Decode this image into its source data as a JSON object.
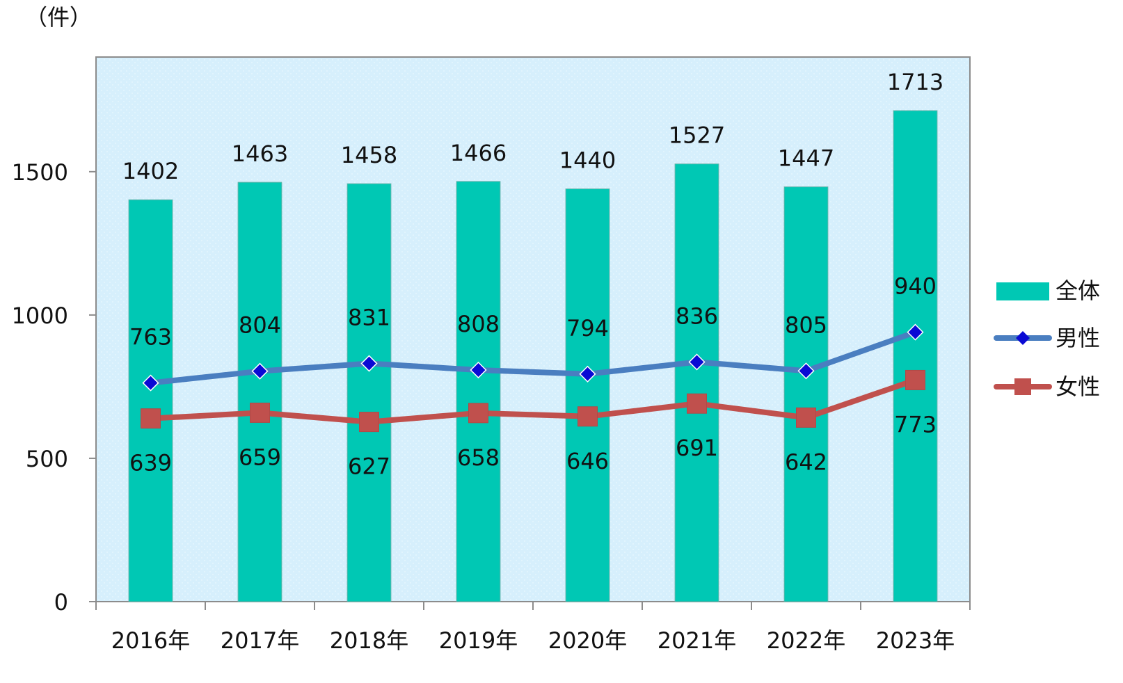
{
  "chart_data": {
    "type": "bar",
    "unit_label": "（件）",
    "categories": [
      "2016年",
      "2017年",
      "2018年",
      "2019年",
      "2020年",
      "2021年",
      "2022年",
      "2023年"
    ],
    "ylim": [
      0,
      1900
    ],
    "yticks": [
      "0",
      "500",
      "1000",
      "1500"
    ],
    "grid": false,
    "legend_position": "right",
    "colors": {
      "total": "#00c8b4",
      "male": "#4a7ec0",
      "male_marker": "#0a0ad4",
      "female": "#c0504d",
      "plot_bg": "#d6effc"
    },
    "series": [
      {
        "name": "全体",
        "kind": "bar",
        "values": [
          1402,
          1463,
          1458,
          1466,
          1440,
          1527,
          1447,
          1713
        ]
      },
      {
        "name": "男性",
        "kind": "line",
        "marker": "diamond",
        "values": [
          763,
          804,
          831,
          808,
          794,
          836,
          805,
          940
        ]
      },
      {
        "name": "女性",
        "kind": "line",
        "marker": "square",
        "values": [
          639,
          659,
          627,
          658,
          646,
          691,
          642,
          773
        ]
      }
    ]
  }
}
